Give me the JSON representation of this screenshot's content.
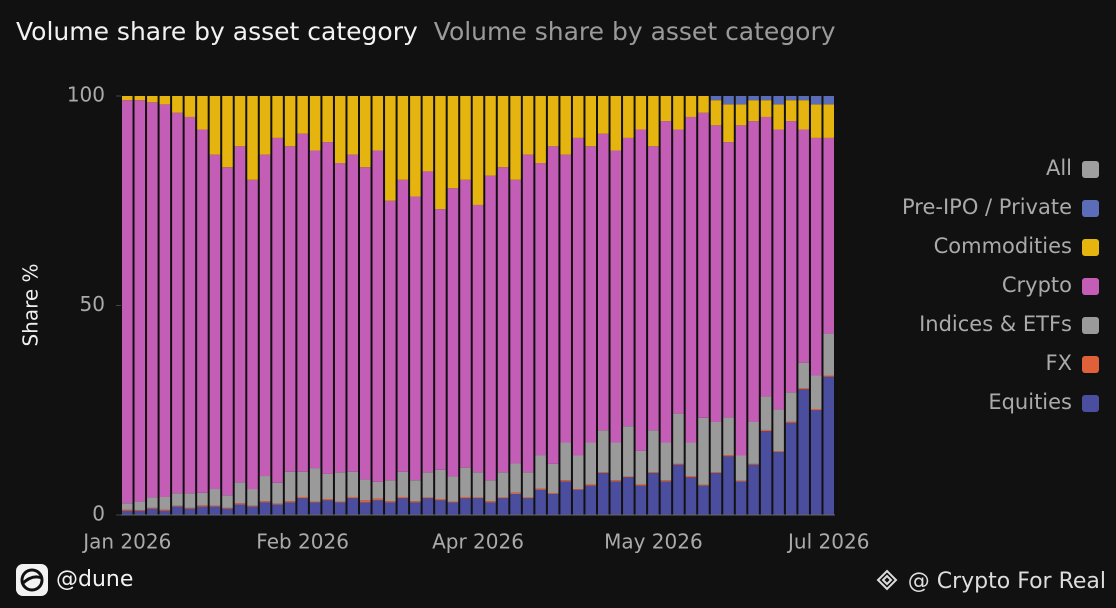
{
  "chart_data": {
    "type": "stacked_bar",
    "title": "Volume share by asset category",
    "subtitle": "Volume share by asset category",
    "y_label": "Share %",
    "categories": [
      "Jan 2026",
      null,
      null,
      null,
      null,
      null,
      null,
      null,
      null,
      null,
      null,
      null,
      null,
      null,
      "Feb 2026",
      null,
      null,
      null,
      null,
      null,
      null,
      null,
      null,
      null,
      null,
      null,
      null,
      null,
      "Apr 2026",
      null,
      null,
      null,
      null,
      null,
      null,
      null,
      null,
      null,
      null,
      null,
      null,
      null,
      "May 2026",
      null,
      null,
      null,
      null,
      null,
      null,
      null,
      null,
      null,
      null,
      null,
      null,
      null,
      "Jul 2026"
    ],
    "ylim": [
      0,
      100
    ],
    "yticks": [
      0,
      50,
      100
    ],
    "legend": "right",
    "series": [
      {
        "name": "Equities",
        "color": "#4b4e9e",
        "values": [
          1,
          1,
          1.5,
          1,
          2,
          1.5,
          2,
          2,
          1.5,
          2.5,
          2,
          3,
          2.5,
          3,
          4,
          3,
          3.5,
          3,
          4,
          3,
          3.5,
          3,
          4,
          3,
          4,
          3.5,
          3,
          4,
          4,
          3,
          4,
          5,
          4,
          6,
          5,
          8,
          6,
          7,
          10,
          8,
          9,
          7,
          10,
          8,
          12,
          9,
          7,
          10,
          14,
          8,
          12,
          20,
          15,
          22,
          30,
          25,
          33
        ]
      },
      {
        "name": "FX",
        "color": "#e0603a",
        "values": [
          0.3,
          0.2,
          0.2,
          0.3,
          0.2,
          0.2,
          0.3,
          0.2,
          0.2,
          0.3,
          0.2,
          0.3,
          0.2,
          0.3,
          0.3,
          0.2,
          0.3,
          0.2,
          0.3,
          0.5,
          0.4,
          0.3,
          0.3,
          0.3,
          0.2,
          0.3,
          0.2,
          0.3,
          0.2,
          0.3,
          0.2,
          0.3,
          0.2,
          0.3,
          0.2,
          0.3,
          0.2,
          0.3,
          0.2,
          0.3,
          0.2,
          0.3,
          0.2,
          0.3,
          0.2,
          0.3,
          0.2,
          0.2,
          0.3,
          0.2,
          0.2,
          0.3,
          0.2,
          0.3,
          0.3,
          0.3,
          0.3
        ]
      },
      {
        "name": "Indices & ETFs",
        "color": "#9a9a9a",
        "values": [
          1.5,
          2,
          2.5,
          3,
          3,
          3.5,
          3,
          4,
          3,
          5,
          4,
          6,
          5,
          7,
          6,
          8,
          6,
          7,
          6,
          5,
          4,
          5,
          6,
          5,
          6,
          7,
          6,
          7,
          6,
          5,
          6,
          7,
          6,
          8,
          7,
          9,
          8,
          10,
          10,
          9,
          12,
          8,
          10,
          9,
          12,
          8,
          16,
          12,
          9,
          6,
          10,
          8,
          10,
          7,
          6,
          8,
          10
        ]
      },
      {
        "name": "Crypto",
        "color": "#c35db5",
        "values": [
          96.2,
          95.8,
          94.3,
          93.7,
          90.8,
          89.8,
          86.7,
          79.8,
          78.3,
          80.2,
          73.8,
          76.7,
          82.3,
          77.7,
          80.7,
          75.8,
          79.2,
          73.8,
          75.7,
          74.5,
          79.1,
          66.7,
          69.7,
          67.7,
          71.8,
          62.2,
          68.8,
          68.7,
          63.8,
          72.7,
          72.8,
          67.7,
          75.8,
          69.7,
          75.8,
          68.7,
          75.8,
          70.7,
          70.8,
          69.7,
          68.8,
          76.7,
          67.8,
          76.7,
          67.8,
          77.7,
          72.8,
          70.8,
          65.7,
          78.8,
          71.8,
          66.7,
          66.8,
          64.7,
          55.7,
          56.7,
          46.7
        ]
      },
      {
        "name": "Commodities",
        "color": "#e6b40e",
        "values": [
          1,
          1,
          1.5,
          2,
          4,
          5,
          8,
          14,
          17,
          12,
          20,
          14,
          10,
          12,
          9,
          13,
          11,
          16,
          14,
          17,
          13,
          25,
          20,
          24,
          18,
          27,
          22,
          20,
          26,
          19,
          17,
          20,
          14,
          16,
          12,
          14,
          10,
          12,
          9,
          13,
          10,
          8,
          12,
          6,
          8,
          5,
          4,
          6,
          9,
          5,
          5,
          4,
          6,
          5,
          7,
          8,
          8
        ]
      },
      {
        "name": "Pre-IPO / Private",
        "color": "#5b6cb8",
        "values": [
          0,
          0,
          0,
          0,
          0,
          0,
          0,
          0,
          0,
          0,
          0,
          0,
          0,
          0,
          0,
          0,
          0,
          0,
          0,
          0,
          0,
          0,
          0,
          0,
          0,
          0,
          0,
          0,
          0,
          0,
          0,
          0,
          0,
          0,
          0,
          0,
          0,
          0,
          0,
          0,
          0,
          0,
          0,
          0,
          0,
          0,
          0,
          1,
          2,
          2,
          1,
          1,
          2,
          1,
          1,
          2,
          2
        ]
      },
      {
        "name": "All",
        "color": "#9e9e9e",
        "values": [
          0,
          0,
          0,
          0,
          0,
          0,
          0,
          0,
          0,
          0,
          0,
          0,
          0,
          0,
          0,
          0,
          0,
          0,
          0,
          0,
          0,
          0,
          0,
          0,
          0,
          0,
          0,
          0,
          0,
          0,
          0,
          0,
          0,
          0,
          0,
          0,
          0,
          0,
          0,
          0,
          0,
          0,
          0,
          0,
          0,
          0,
          0,
          0,
          0,
          0,
          0,
          0,
          0,
          0,
          0,
          0,
          0
        ]
      }
    ]
  },
  "footer": {
    "left": "@dune",
    "right": "@ Crypto For Real"
  }
}
